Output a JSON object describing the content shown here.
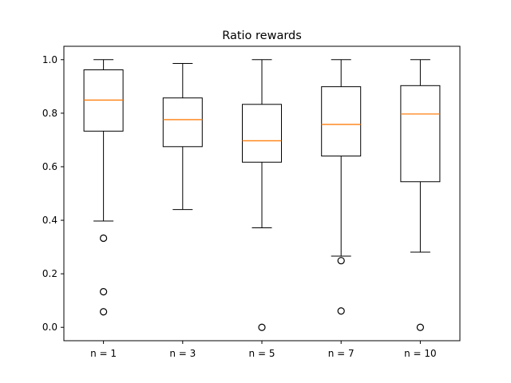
{
  "chart_data": {
    "type": "box",
    "title": "Ratio rewards",
    "xlabel": "",
    "ylabel": "",
    "ylim": [
      -0.05,
      1.05
    ],
    "yticks": [
      0.0,
      0.2,
      0.4,
      0.6,
      0.8,
      1.0
    ],
    "ytick_labels": [
      "0.0",
      "0.2",
      "0.4",
      "0.6",
      "0.8",
      "1.0"
    ],
    "grid": false,
    "colors": {
      "box": "#000000",
      "median": "#ff7f0e",
      "flier": "#000000"
    },
    "categories": [
      "n = 1",
      "n = 3",
      "n = 5",
      "n = 7",
      "n = 10"
    ],
    "boxes": [
      {
        "label": "n = 1",
        "whisker_low": 0.397,
        "q1": 0.733,
        "median": 0.849,
        "q3": 0.962,
        "whisker_high": 1.0,
        "fliers": [
          0.333,
          0.133,
          0.058
        ]
      },
      {
        "label": "n = 3",
        "whisker_low": 0.44,
        "q1": 0.675,
        "median": 0.776,
        "q3": 0.857,
        "whisker_high": 0.986,
        "fliers": []
      },
      {
        "label": "n = 5",
        "whisker_low": 0.372,
        "q1": 0.617,
        "median": 0.697,
        "q3": 0.833,
        "whisker_high": 1.0,
        "fliers": [
          0.0
        ]
      },
      {
        "label": "n = 7",
        "whisker_low": 0.266,
        "q1": 0.64,
        "median": 0.758,
        "q3": 0.899,
        "whisker_high": 1.0,
        "fliers": [
          0.249,
          0.061
        ]
      },
      {
        "label": "n = 10",
        "whisker_low": 0.281,
        "q1": 0.544,
        "median": 0.797,
        "q3": 0.903,
        "whisker_high": 1.0,
        "fliers": [
          0.0
        ]
      }
    ]
  }
}
